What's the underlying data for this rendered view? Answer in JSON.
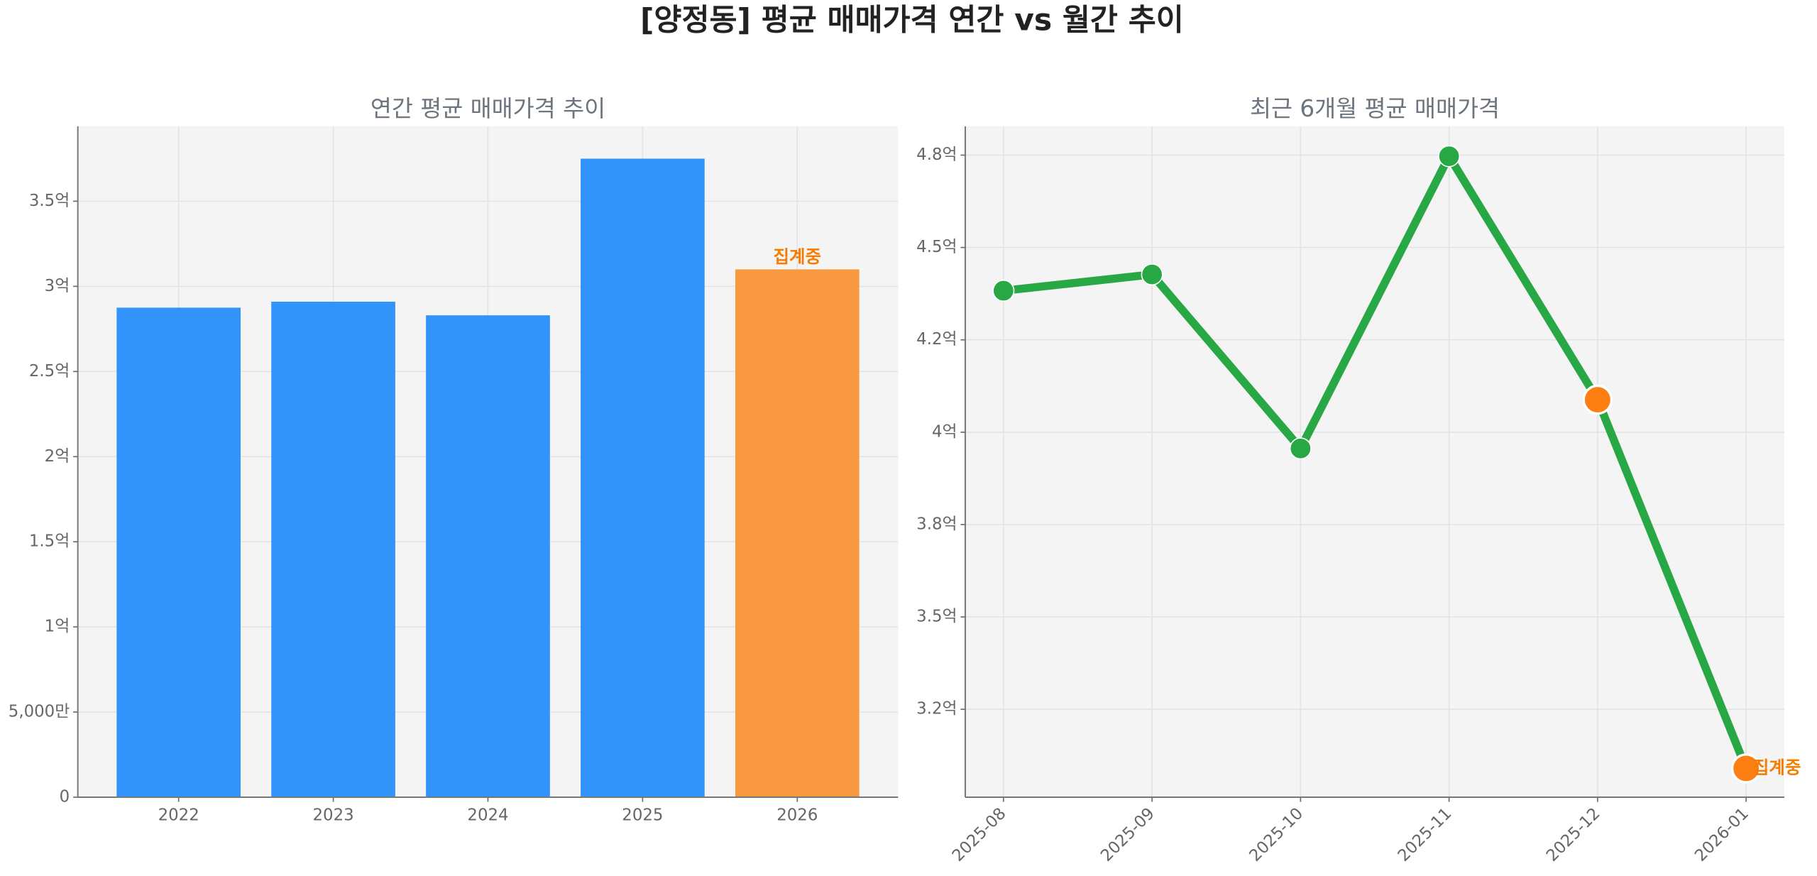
{
  "title": "[양정동] 평균 매매가격 연간 vs 월간 추이",
  "chart_data": [
    {
      "type": "bar",
      "title": "연간 평균 매매가격 추이",
      "categories": [
        "2022",
        "2023",
        "2024",
        "2025",
        "2026"
      ],
      "values": [
        2.875,
        2.91,
        2.83,
        3.75,
        3.1
      ],
      "colors": [
        "#3293fa",
        "#3293fa",
        "#3293fa",
        "#3293fa",
        "#f89840"
      ],
      "ylim": [
        0,
        3.94
      ],
      "yticks": [
        0,
        {
          "value": 0.5,
          "label": "5,000만"
        },
        {
          "value": 1,
          "label": "1억"
        },
        {
          "value": 1.5,
          "label": "1.5억"
        },
        {
          "value": 2,
          "label": "2억"
        },
        {
          "value": 2.5,
          "label": "2.5억"
        },
        {
          "value": 3,
          "label": "3억"
        },
        {
          "value": 3.5,
          "label": "3.5억"
        }
      ],
      "grid": true,
      "annotations": [
        {
          "text": "집계중",
          "category": "2026",
          "color": "#f57c00"
        }
      ]
    },
    {
      "type": "line",
      "title": "최근 6개월 평균 매매가격",
      "categories": [
        "2025-08",
        "2025-09",
        "2025-10",
        "2025-11",
        "2025-12",
        "2026-01"
      ],
      "values": [
        4.383,
        4.427,
        3.956,
        4.747,
        4.088,
        3.09
      ],
      "color": "#28a745",
      "marker_colors": [
        "#28a745",
        "#28a745",
        "#28a745",
        "#28a745",
        "#fd7f14",
        "#fd7f14"
      ],
      "ylim": [
        3.012,
        4.828
      ],
      "yticks": [
        {
          "value": 3.25,
          "label": "3.2억"
        },
        {
          "value": 3.5,
          "label": "3.5억"
        },
        {
          "value": 3.75,
          "label": "3.8억"
        },
        {
          "value": 4,
          "label": "4억"
        },
        {
          "value": 4.25,
          "label": "4.2억"
        },
        {
          "value": 4.5,
          "label": "4.5억"
        },
        {
          "value": 4.75,
          "label": "4.8억"
        }
      ],
      "grid": true,
      "annotations": [
        {
          "text": "집계중",
          "category": "2026-01",
          "color": "#f57c00"
        }
      ]
    }
  ]
}
